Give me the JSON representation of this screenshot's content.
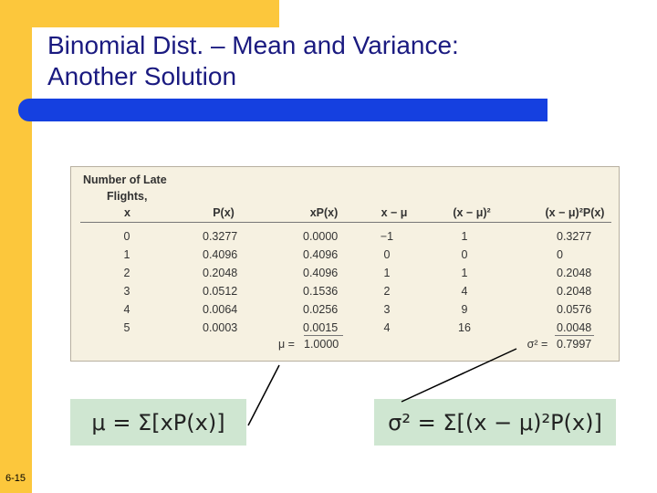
{
  "title": [
    "Binomial Dist. – Mean and Variance:",
    "Another Solution"
  ],
  "table": {
    "first_header": [
      "Number of Late",
      "Flights,",
      "x"
    ],
    "headers": [
      "P(x)",
      "xP(x)",
      "x − μ",
      "(x − μ)²",
      "(x − μ)²P(x)"
    ],
    "rows": [
      [
        "0",
        "0.3277",
        "0.0000",
        "−1",
        "1",
        "0.3277"
      ],
      [
        "1",
        "0.4096",
        "0.4096",
        "0",
        "0",
        "0"
      ],
      [
        "2",
        "0.2048",
        "0.4096",
        "1",
        "1",
        "0.2048"
      ],
      [
        "3",
        "0.0512",
        "0.1536",
        "2",
        "4",
        "0.2048"
      ],
      [
        "4",
        "0.0064",
        "0.0256",
        "3",
        "9",
        "0.0576"
      ],
      [
        "5",
        "0.0003",
        "0.0015",
        "4",
        "16",
        "0.0048"
      ]
    ],
    "mean": {
      "label": "μ =",
      "value": "1.0000"
    },
    "variance": {
      "label": "σ² =",
      "value": "0.7997"
    }
  },
  "formulas": [
    "μ = Σ[xP(x)]",
    "σ² = Σ[(x − μ)²P(x)]"
  ],
  "page_number": "6-15"
}
